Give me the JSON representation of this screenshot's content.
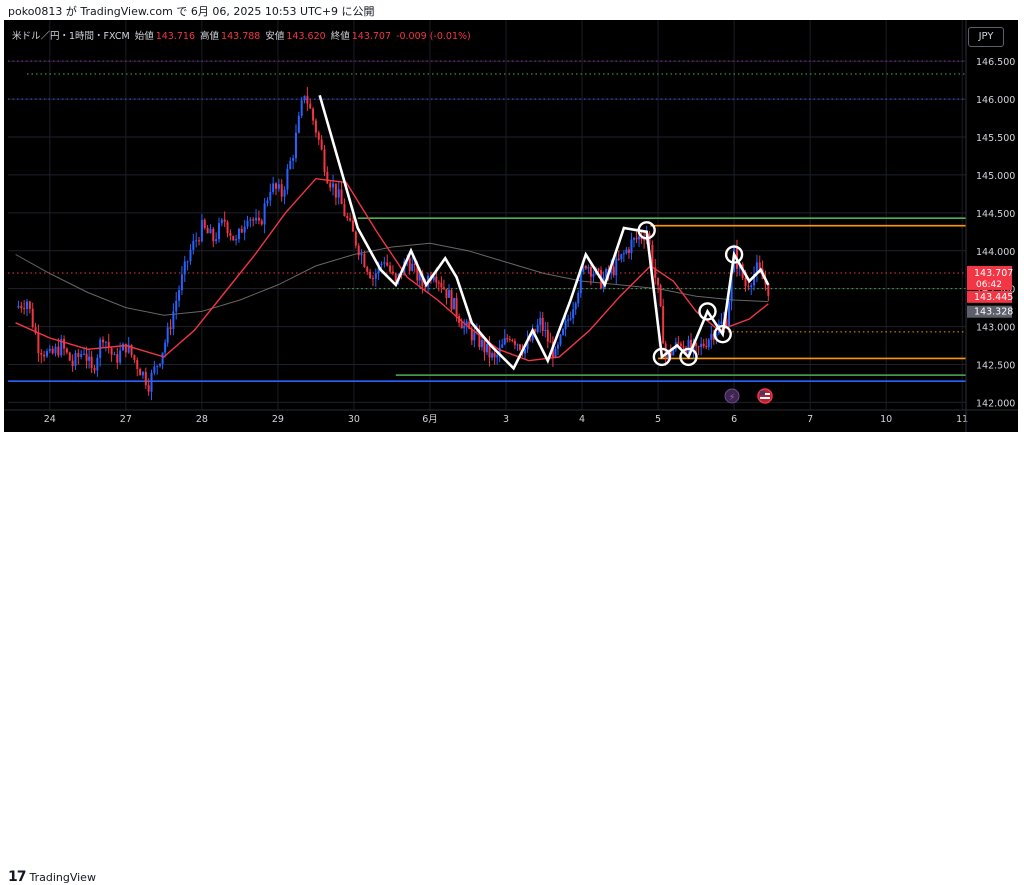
{
  "header": {
    "publish_text": "poko0813 が TradingView.com で 6月 06, 2025 10:53 UTC+9 に公開"
  },
  "legend": {
    "symbol": "米ドル／円・1時間・FXCM",
    "open_label": "始値",
    "open_value": "143.716",
    "high_label": "高値",
    "high_value": "143.788",
    "low_label": "安値",
    "low_value": "143.620",
    "close_label": "終値",
    "close_value": "143.707",
    "change": "-0.009 (-0.01%)"
  },
  "currency": "JPY",
  "price_tags": {
    "last_price": "143.707",
    "countdown": "06:42",
    "ma_fast": "143.445",
    "ma_slow": "143.328"
  },
  "footer": {
    "logo_glyph": "17",
    "brand": "TradingView"
  },
  "colors": {
    "background": "#000000",
    "up_candle": "#2962ff",
    "down_candle": "#f23645",
    "ma_fast": "#f23645",
    "ma_slow": "#808080",
    "zigzag": "#ffffff",
    "support_green": "#4caf50",
    "resistance_orange": "#ff9800",
    "blue_line": "#2962ff"
  },
  "chart_data": {
    "type": "candlestick",
    "title": "米ドル／円・1時間・FXCM",
    "y_axis": {
      "range": [
        141.9,
        146.7
      ],
      "ticks": [
        "146.500",
        "146.000",
        "145.500",
        "145.000",
        "144.500",
        "144.000",
        "143.500",
        "143.000",
        "142.500",
        "142.000"
      ]
    },
    "x_axis": {
      "tick_labels": [
        {
          "label": "24",
          "day": 0
        },
        {
          "label": "27",
          "day": 1
        },
        {
          "label": "28",
          "day": 2
        },
        {
          "label": "29",
          "day": 3
        },
        {
          "label": "30",
          "day": 4
        },
        {
          "label": "6月",
          "day": 5
        },
        {
          "label": "3",
          "day": 6
        },
        {
          "label": "4",
          "day": 7
        },
        {
          "label": "5",
          "day": 8
        },
        {
          "label": "6",
          "day": 9
        },
        {
          "label": "7",
          "day": 10
        },
        {
          "label": "10",
          "day": 11
        },
        {
          "label": "11",
          "day": 12
        }
      ],
      "range": [
        -0.55,
        12.05
      ]
    },
    "price_path": [
      [
        -0.45,
        143.25
      ],
      [
        -0.3,
        143.35
      ],
      [
        -0.15,
        142.75
      ],
      [
        0,
        142.6
      ],
      [
        0.15,
        142.75
      ],
      [
        0.3,
        142.5
      ],
      [
        0.45,
        142.7
      ],
      [
        0.55,
        142.4
      ],
      [
        0.7,
        142.9
      ],
      [
        0.85,
        142.55
      ],
      [
        1.0,
        142.75
      ],
      [
        1.15,
        142.5
      ],
      [
        1.3,
        142.25
      ],
      [
        1.45,
        142.6
      ],
      [
        1.55,
        142.9
      ],
      [
        1.7,
        143.5
      ],
      [
        1.85,
        144.0
      ],
      [
        2.0,
        144.3
      ],
      [
        2.15,
        144.15
      ],
      [
        2.3,
        144.4
      ],
      [
        2.45,
        144.1
      ],
      [
        2.6,
        144.5
      ],
      [
        2.75,
        144.3
      ],
      [
        2.9,
        144.85
      ],
      [
        3.05,
        144.75
      ],
      [
        3.2,
        145.3
      ],
      [
        3.35,
        146.1
      ],
      [
        3.5,
        145.6
      ],
      [
        3.65,
        145.0
      ],
      [
        3.8,
        144.7
      ],
      [
        3.95,
        144.3
      ],
      [
        4.1,
        143.95
      ],
      [
        4.25,
        143.65
      ],
      [
        4.4,
        143.9
      ],
      [
        4.55,
        143.55
      ],
      [
        4.7,
        143.9
      ],
      [
        4.9,
        143.55
      ],
      [
        5.05,
        143.75
      ],
      [
        5.25,
        143.4
      ],
      [
        5.45,
        143.0
      ],
      [
        5.65,
        142.8
      ],
      [
        5.85,
        142.55
      ],
      [
        6.05,
        142.9
      ],
      [
        6.25,
        142.7
      ],
      [
        6.45,
        143.05
      ],
      [
        6.65,
        142.6
      ],
      [
        6.85,
        143.2
      ],
      [
        7.05,
        143.85
      ],
      [
        7.25,
        143.6
      ],
      [
        7.45,
        143.8
      ],
      [
        7.65,
        144.1
      ],
      [
        7.85,
        144.25
      ],
      [
        8.0,
        143.45
      ],
      [
        8.1,
        142.6
      ],
      [
        8.3,
        142.8
      ],
      [
        8.5,
        142.65
      ],
      [
        8.7,
        142.9
      ],
      [
        8.9,
        143.1
      ],
      [
        9.0,
        143.95
      ],
      [
        9.15,
        143.55
      ],
      [
        9.3,
        143.75
      ],
      [
        9.45,
        143.5
      ]
    ],
    "series": [
      {
        "name": "",
        "color": "#f23645",
        "points": [
          [
            -0.45,
            143.05
          ],
          [
            0,
            142.85
          ],
          [
            0.5,
            142.7
          ],
          [
            1.0,
            142.75
          ],
          [
            1.5,
            142.6
          ],
          [
            1.9,
            142.95
          ],
          [
            2.3,
            143.45
          ],
          [
            2.7,
            143.95
          ],
          [
            3.1,
            144.5
          ],
          [
            3.5,
            144.95
          ],
          [
            3.9,
            144.9
          ],
          [
            4.3,
            144.25
          ],
          [
            4.7,
            143.65
          ],
          [
            5.1,
            143.35
          ],
          [
            5.5,
            143.0
          ],
          [
            5.9,
            142.7
          ],
          [
            6.3,
            142.55
          ],
          [
            6.7,
            142.6
          ],
          [
            7.1,
            142.95
          ],
          [
            7.5,
            143.4
          ],
          [
            7.9,
            143.8
          ],
          [
            8.2,
            143.6
          ],
          [
            8.5,
            143.2
          ],
          [
            8.8,
            142.95
          ],
          [
            9.2,
            143.1
          ],
          [
            9.45,
            143.3
          ]
        ]
      },
      {
        "name": "",
        "color": "#808080",
        "points": [
          [
            -0.45,
            143.95
          ],
          [
            0,
            143.7
          ],
          [
            0.5,
            143.45
          ],
          [
            1.0,
            143.25
          ],
          [
            1.5,
            143.15
          ],
          [
            2.0,
            143.2
          ],
          [
            2.5,
            143.35
          ],
          [
            3.0,
            143.55
          ],
          [
            3.5,
            143.8
          ],
          [
            4.0,
            143.95
          ],
          [
            4.5,
            144.05
          ],
          [
            5.0,
            144.1
          ],
          [
            5.5,
            144.0
          ],
          [
            6.0,
            143.85
          ],
          [
            6.5,
            143.7
          ],
          [
            7.0,
            143.6
          ],
          [
            7.5,
            143.55
          ],
          [
            8.0,
            143.5
          ],
          [
            8.5,
            143.4
          ],
          [
            9.0,
            143.35
          ],
          [
            9.45,
            143.33
          ]
        ]
      }
    ],
    "zigzag": [
      [
        3.55,
        146.05
      ],
      [
        4.05,
        144.3
      ],
      [
        4.35,
        143.75
      ],
      [
        4.55,
        143.55
      ],
      [
        4.75,
        144.0
      ],
      [
        4.95,
        143.55
      ],
      [
        5.2,
        143.9
      ],
      [
        5.35,
        143.65
      ],
      [
        5.55,
        143.05
      ],
      [
        5.8,
        142.75
      ],
      [
        6.1,
        142.45
      ],
      [
        6.35,
        142.95
      ],
      [
        6.55,
        142.55
      ],
      [
        6.85,
        143.35
      ],
      [
        7.05,
        143.95
      ],
      [
        7.3,
        143.55
      ],
      [
        7.55,
        144.3
      ],
      [
        7.85,
        144.25
      ],
      [
        8.05,
        142.6
      ],
      [
        8.25,
        142.75
      ],
      [
        8.4,
        142.6
      ],
      [
        8.65,
        143.2
      ],
      [
        8.85,
        142.9
      ],
      [
        9.0,
        143.95
      ],
      [
        9.2,
        143.6
      ],
      [
        9.35,
        143.75
      ],
      [
        9.45,
        143.55
      ]
    ],
    "marker_points": [
      [
        7.85,
        144.27
      ],
      [
        8.05,
        142.6
      ],
      [
        8.4,
        142.6
      ],
      [
        8.65,
        143.2
      ],
      [
        8.85,
        142.9
      ],
      [
        9.0,
        143.95
      ]
    ],
    "horizontal_lines": [
      {
        "price": 146.5,
        "style": "dotted",
        "color": "#9c27b0",
        "from_day": -0.55
      },
      {
        "price": 146.33,
        "style": "dotted",
        "color": "#4caf50",
        "from_day": -0.3
      },
      {
        "price": 146.0,
        "style": "dotted",
        "color": "#2962ff",
        "from_day": -0.55
      },
      {
        "price": 144.43,
        "style": "solid",
        "color": "#4caf50",
        "from_day": 4.05
      },
      {
        "price": 144.33,
        "style": "solid",
        "color": "#ff9800",
        "from_day": 7.9
      },
      {
        "price": 143.707,
        "style": "dotted",
        "color": "#f23645",
        "from_day": -0.55
      },
      {
        "price": 143.5,
        "style": "dotted",
        "color": "#4caf50",
        "from_day": 3.8
      },
      {
        "price": 142.93,
        "style": "dotted",
        "color": "#ff9800",
        "from_day": 8.8
      },
      {
        "price": 142.58,
        "style": "solid",
        "color": "#ff9800",
        "from_day": 8.0
      },
      {
        "price": 142.36,
        "style": "solid",
        "color": "#4caf50",
        "from_day": 4.55
      },
      {
        "price": 142.28,
        "style": "solid",
        "color": "#2962ff",
        "from_day": -0.55
      }
    ],
    "grid": true
  }
}
